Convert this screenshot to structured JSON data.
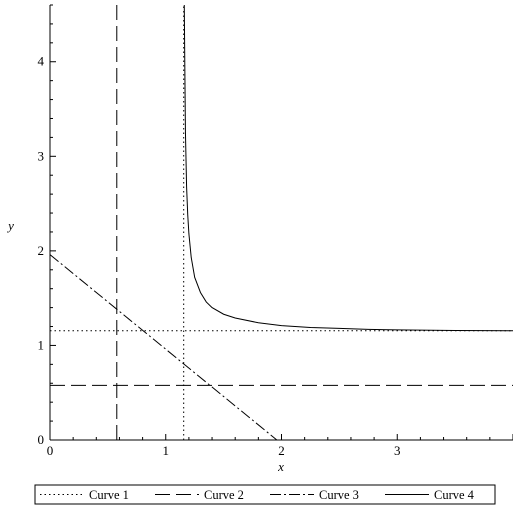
{
  "chart_data": {
    "type": "line",
    "xlabel": "x",
    "ylabel": "y",
    "xlim": [
      0,
      4
    ],
    "ylim": [
      0,
      4.6
    ],
    "x_ticks": [
      0,
      1,
      2,
      3
    ],
    "y_ticks": [
      0,
      1,
      2,
      3,
      4
    ],
    "grid": false,
    "legend_position": "bottom",
    "series": [
      {
        "name": "Curve 1",
        "style": "dotted",
        "segments": [
          [
            [
              1.155,
              0
            ],
            [
              1.155,
              4.6
            ]
          ],
          [
            [
              0,
              1.155
            ],
            [
              4,
              1.155
            ]
          ]
        ]
      },
      {
        "name": "Curve 2",
        "style": "dashed",
        "segments": [
          [
            [
              0.577,
              0
            ],
            [
              0.577,
              4.6
            ]
          ],
          [
            [
              0,
              0.577
            ],
            [
              4,
              0.577
            ]
          ]
        ]
      },
      {
        "name": "Curve 3",
        "style": "dash-dot",
        "segments": [
          [
            [
              0,
              1.96
            ],
            [
              1.96,
              0
            ]
          ]
        ]
      },
      {
        "name": "Curve 4",
        "style": "solid",
        "points": [
          [
            1.16,
            4.6
          ],
          [
            1.165,
            3.91
          ],
          [
            1.17,
            3.26
          ],
          [
            1.18,
            2.68
          ],
          [
            1.19,
            2.38
          ],
          [
            1.2,
            2.18
          ],
          [
            1.22,
            1.93
          ],
          [
            1.25,
            1.72
          ],
          [
            1.3,
            1.56
          ],
          [
            1.35,
            1.46
          ],
          [
            1.4,
            1.4
          ],
          [
            1.5,
            1.33
          ],
          [
            1.6,
            1.29
          ],
          [
            1.8,
            1.24
          ],
          [
            2.0,
            1.21
          ],
          [
            2.25,
            1.19
          ],
          [
            2.5,
            1.18
          ],
          [
            2.75,
            1.17
          ],
          [
            3.0,
            1.165
          ],
          [
            3.5,
            1.158
          ],
          [
            4.0,
            1.155
          ]
        ]
      }
    ]
  }
}
